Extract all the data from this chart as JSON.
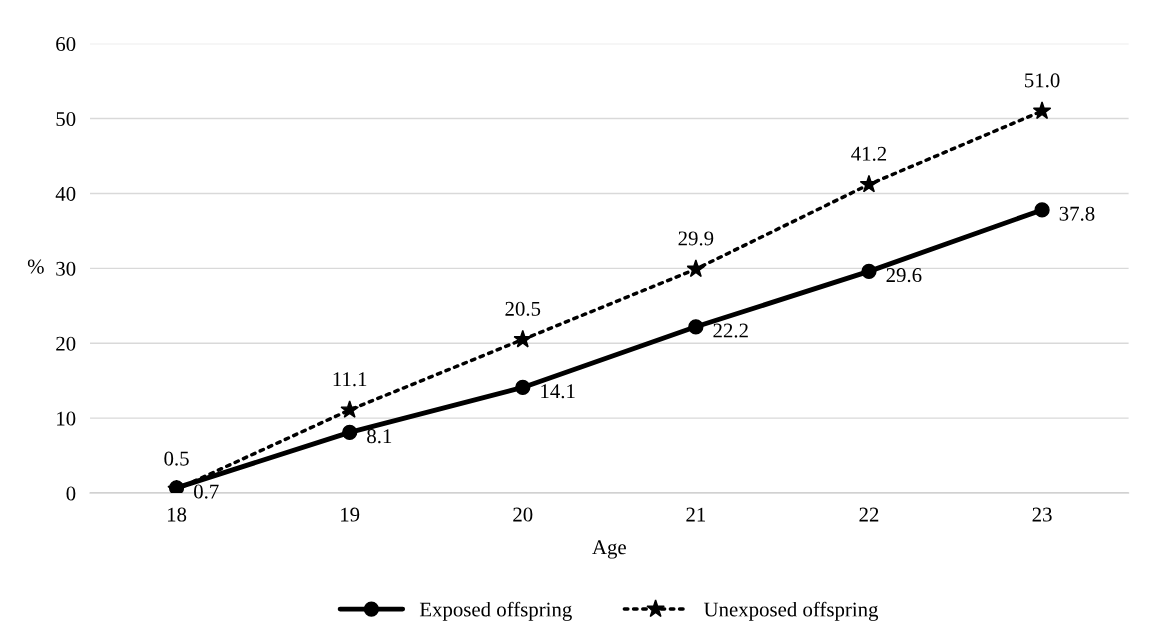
{
  "chart_data": {
    "type": "line",
    "xlabel": "Age",
    "ylabel": "%",
    "categories": [
      "18",
      "19",
      "20",
      "21",
      "22",
      "23"
    ],
    "series": [
      {
        "name": "Exposed offspring",
        "color": "#000000",
        "values": [
          0.7,
          8.1,
          14.1,
          22.2,
          29.6,
          37.8
        ],
        "value_labels": [
          "0.7",
          "8.1",
          "14.1",
          "22.2",
          "29.6",
          "37.8"
        ],
        "marker": "circle",
        "line_style": "solid"
      },
      {
        "name": "Unexposed offspring",
        "color": "#000000",
        "values": [
          0.5,
          11.1,
          20.5,
          29.9,
          41.2,
          51.0
        ],
        "value_labels": [
          "0.5",
          "11.1",
          "20.5",
          "29.9",
          "41.2",
          "51.0"
        ],
        "marker": "star",
        "line_style": "dotted"
      }
    ],
    "ylim": [
      0,
      60
    ],
    "yticks": [
      0,
      10,
      20,
      30,
      40,
      50,
      60
    ],
    "grid": "y",
    "legend": "bottom"
  }
}
